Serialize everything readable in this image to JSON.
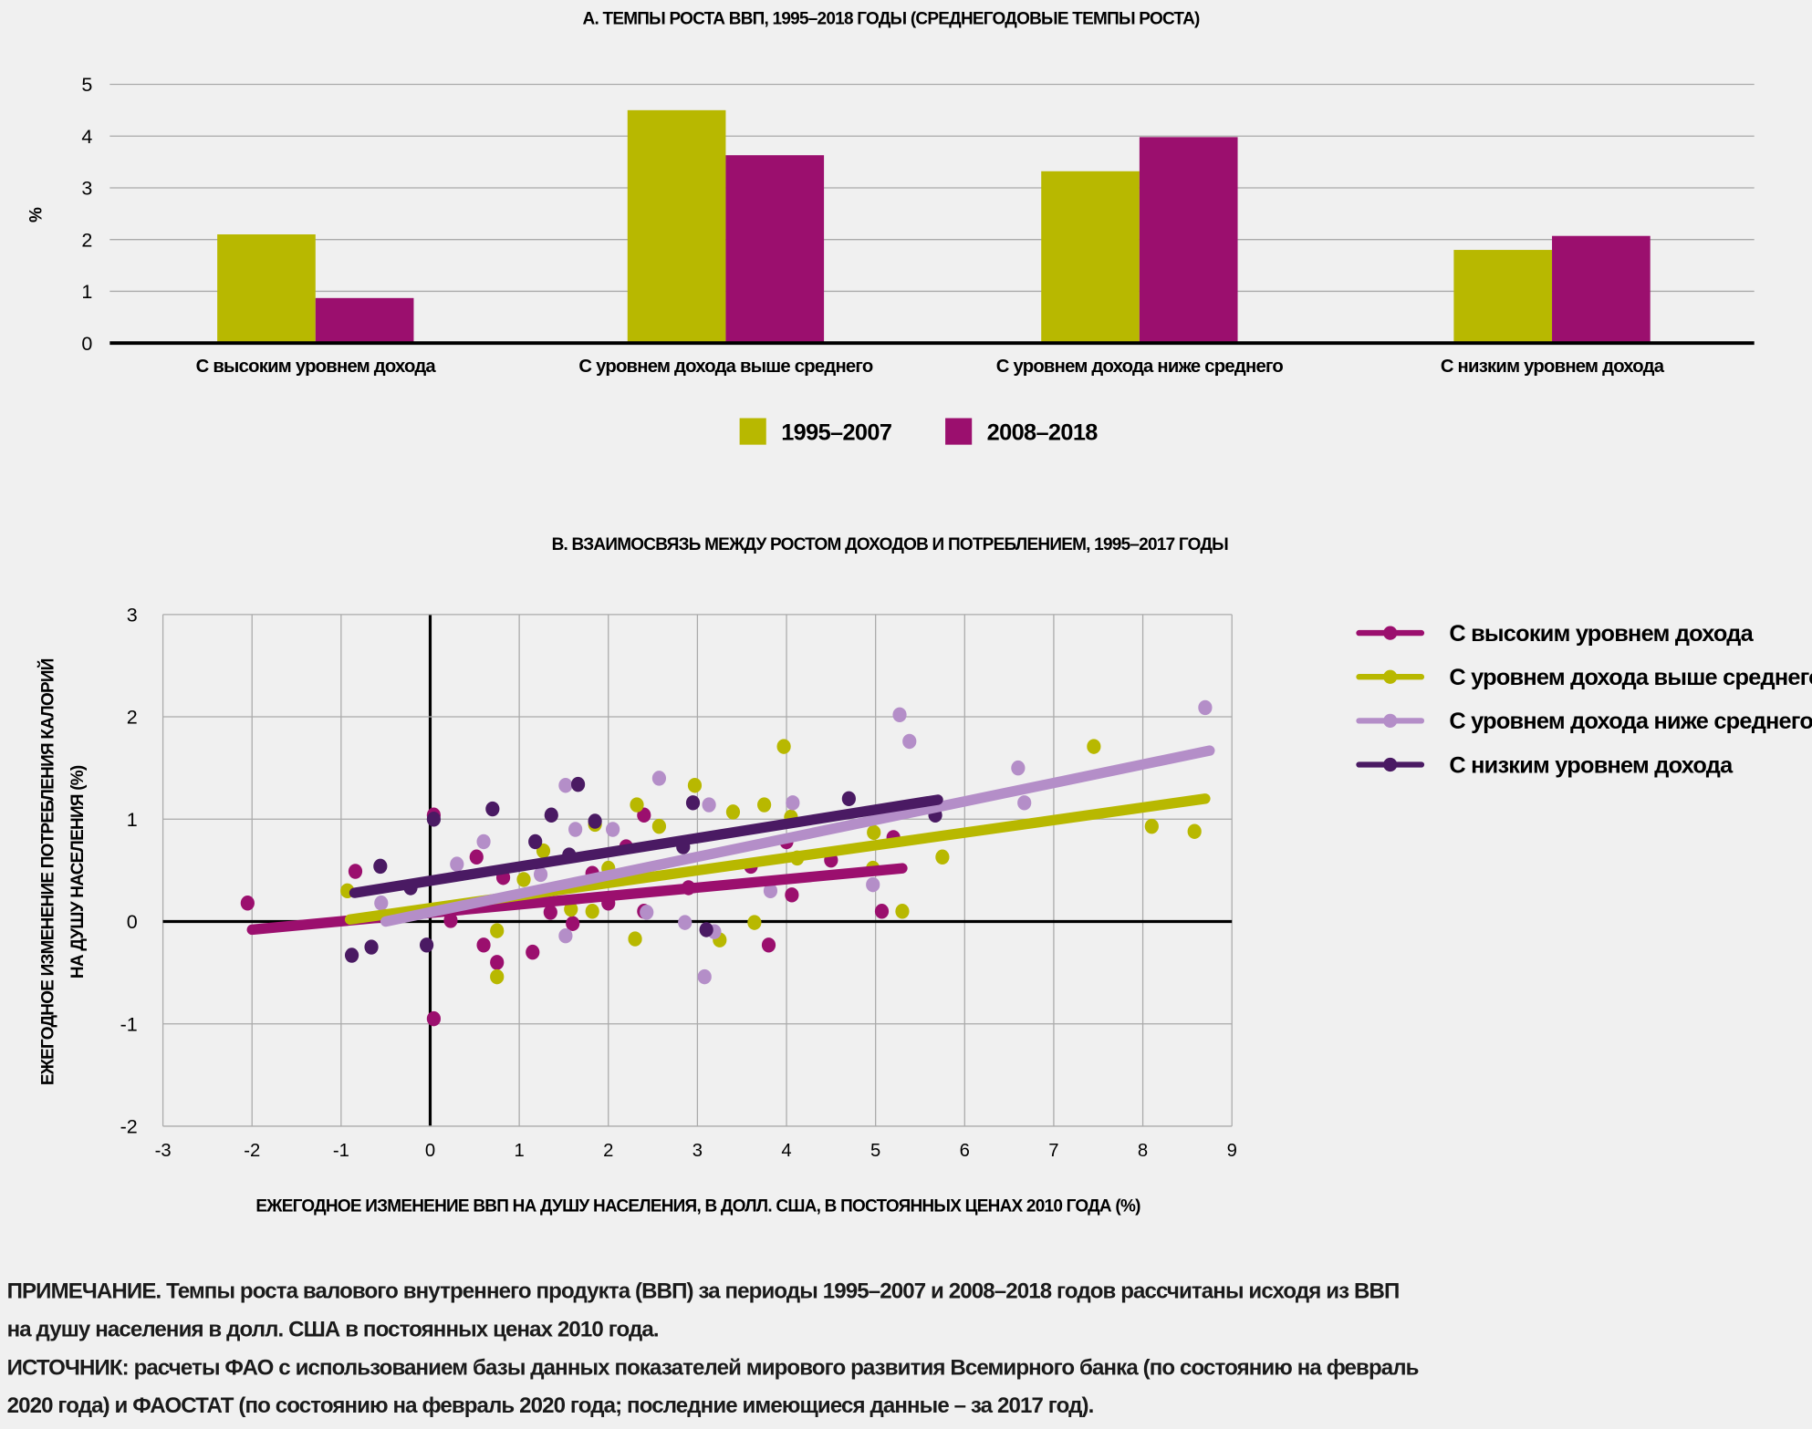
{
  "chart_data": [
    {
      "type": "bar",
      "title": "А. ТЕМПЫ РОСТА ВВП, 1995–2018 ГОДЫ (СРЕДНЕГОДОВЫЕ ТЕМПЫ РОСТА)",
      "ylabel": "%",
      "xlabel": "",
      "ylim": [
        0,
        5
      ],
      "yticks": [
        "0",
        "1",
        "2",
        "3",
        "4",
        "5"
      ],
      "grid": true,
      "legend_position": "bottom",
      "categories": [
        "С высоким уровнем дохода",
        "С уровнем дохода выше среднего",
        "С уровнем дохода ниже среднего",
        "С низким уровнем дохода"
      ],
      "series": [
        {
          "name": "1995–2007",
          "color": "#b8b800",
          "values": [
            2.1,
            4.5,
            3.32,
            1.8
          ]
        },
        {
          "name": "2008–2018",
          "color": "#9b0f6e",
          "values": [
            0.87,
            3.63,
            3.98,
            2.07
          ]
        }
      ]
    },
    {
      "type": "scatter",
      "title": "B. ВЗАИМОСВЯЗЬ МЕЖДУ РОСТОМ ДОХОДОВ И ПОТРЕБЛЕНИЕМ, 1995–2017 ГОДЫ",
      "xlabel": "ЕЖЕГОДНОЕ ИЗМЕНЕНИЕ ВВП НА ДУШУ НАСЕЛЕНИЯ, В ДОЛЛ. США, В  ПОСТОЯННЫХ ЦЕНАХ 2010 ГОДА (%)",
      "ylabel_lines": [
        "ЕЖЕГОДНОЕ ИЗМЕНЕНИЕ ПОТРЕБЛЕНИЯ КАЛОРИЙ",
        "НА ДУШУ НАСЕЛЕНИЯ (%)"
      ],
      "xlim": [
        -3,
        9
      ],
      "ylim": [
        -2,
        3
      ],
      "xticks": [
        "-3",
        "-2",
        "-1",
        "0",
        "1",
        "2",
        "3",
        "4",
        "5",
        "6",
        "7",
        "8",
        "9"
      ],
      "yticks": [
        "-2",
        "-1",
        "0",
        "1",
        "2",
        "3"
      ],
      "grid": true,
      "legend_position": "right",
      "series": [
        {
          "name": "С высоким уровнем дохода",
          "color": "#9b0f6e",
          "trend": [
            [
              -2,
              -0.08
            ],
            [
              5.3,
              0.52
            ]
          ],
          "points": [
            [
              -2.05,
              0.18
            ],
            [
              -0.84,
              0.49
            ],
            [
              0.04,
              1.04
            ],
            [
              0.52,
              0.63
            ],
            [
              0.82,
              0.43
            ],
            [
              0.23,
              0.01
            ],
            [
              0.6,
              -0.23
            ],
            [
              0.75,
              -0.4
            ],
            [
              1.15,
              -0.3
            ],
            [
              0.04,
              -0.95
            ],
            [
              1.35,
              0.09
            ],
            [
              1.6,
              -0.02
            ],
            [
              1.82,
              0.47
            ],
            [
              2.0,
              0.18
            ],
            [
              2.4,
              1.04
            ],
            [
              2.4,
              0.1
            ],
            [
              2.9,
              0.33
            ],
            [
              3.6,
              0.54
            ],
            [
              3.8,
              -0.23
            ],
            [
              4.06,
              0.26
            ],
            [
              4.5,
              0.6
            ],
            [
              5.07,
              0.1
            ],
            [
              5.2,
              0.82
            ],
            [
              4.0,
              0.78
            ],
            [
              2.2,
              0.73
            ]
          ]
        },
        {
          "name": "С уровнем дохода выше среднего",
          "color": "#b8b800",
          "trend": [
            [
              -0.9,
              0.02
            ],
            [
              8.7,
              1.2
            ]
          ],
          "points": [
            [
              -0.93,
              0.3
            ],
            [
              0.75,
              -0.09
            ],
            [
              0.75,
              -0.54
            ],
            [
              1.05,
              0.41
            ],
            [
              1.27,
              0.69
            ],
            [
              1.58,
              0.12
            ],
            [
              1.82,
              0.1
            ],
            [
              1.85,
              0.95
            ],
            [
              2.0,
              0.52
            ],
            [
              2.3,
              -0.17
            ],
            [
              2.32,
              1.14
            ],
            [
              2.57,
              0.93
            ],
            [
              2.97,
              1.33
            ],
            [
              3.25,
              -0.18
            ],
            [
              3.4,
              1.07
            ],
            [
              3.64,
              -0.01
            ],
            [
              3.75,
              1.14
            ],
            [
              3.97,
              1.71
            ],
            [
              4.05,
              1.02
            ],
            [
              4.12,
              0.62
            ],
            [
              4.97,
              0.52
            ],
            [
              4.98,
              0.87
            ],
            [
              5.3,
              0.1
            ],
            [
              5.75,
              0.63
            ],
            [
              7.45,
              1.71
            ],
            [
              8.1,
              0.93
            ],
            [
              8.58,
              0.88
            ]
          ]
        },
        {
          "name": "С уровнем дохода ниже среднего",
          "color": "#b48ec8",
          "trend": [
            [
              -0.5,
              0.0
            ],
            [
              8.75,
              1.67
            ]
          ],
          "points": [
            [
              -0.55,
              0.18
            ],
            [
              0.3,
              0.56
            ],
            [
              0.6,
              0.78
            ],
            [
              1.52,
              1.33
            ],
            [
              1.52,
              -0.14
            ],
            [
              1.63,
              0.9
            ],
            [
              2.05,
              0.9
            ],
            [
              2.57,
              1.4
            ],
            [
              2.43,
              0.09
            ],
            [
              2.86,
              -0.01
            ],
            [
              3.08,
              -0.54
            ],
            [
              3.13,
              1.14
            ],
            [
              3.19,
              -0.1
            ],
            [
              3.82,
              0.3
            ],
            [
              4.07,
              1.16
            ],
            [
              4.97,
              0.36
            ],
            [
              5.27,
              2.02
            ],
            [
              5.38,
              1.76
            ],
            [
              6.6,
              1.5
            ],
            [
              6.67,
              1.16
            ],
            [
              8.7,
              2.09
            ],
            [
              1.24,
              0.46
            ]
          ]
        },
        {
          "name": "С низким уровнем дохода",
          "color": "#4a1a63",
          "trend": [
            [
              -0.85,
              0.28
            ],
            [
              5.7,
              1.19
            ]
          ],
          "points": [
            [
              -0.88,
              -0.33
            ],
            [
              -0.66,
              -0.25
            ],
            [
              -0.56,
              0.54
            ],
            [
              -0.22,
              0.33
            ],
            [
              -0.04,
              -0.23
            ],
            [
              0.04,
              1.0
            ],
            [
              0.7,
              1.1
            ],
            [
              1.18,
              0.78
            ],
            [
              1.36,
              1.04
            ],
            [
              1.56,
              0.65
            ],
            [
              1.66,
              1.34
            ],
            [
              1.85,
              0.98
            ],
            [
              2.95,
              1.16
            ],
            [
              3.1,
              -0.08
            ],
            [
              4.7,
              1.2
            ],
            [
              5.67,
              1.04
            ],
            [
              2.84,
              0.73
            ]
          ]
        }
      ]
    }
  ],
  "notes": [
    "ПРИМЕЧАНИЕ. Темпы роста валового внутреннего продукта (ВВП) за периоды 1995–2007 и 2008–2018 годов рассчитаны исходя из ВВП",
    "на душу населения в долл. США в постоянных ценах 2010 года.",
    "ИСТОЧНИК: расчеты ФАО с использованием базы данных показателей мирового развития Всемирного банка (по состоянию на февраль",
    "2020 года) и ФАОСТАТ (по состоянию на февраль 2020 года; последние имеющиеся данные – за 2017 год)."
  ]
}
